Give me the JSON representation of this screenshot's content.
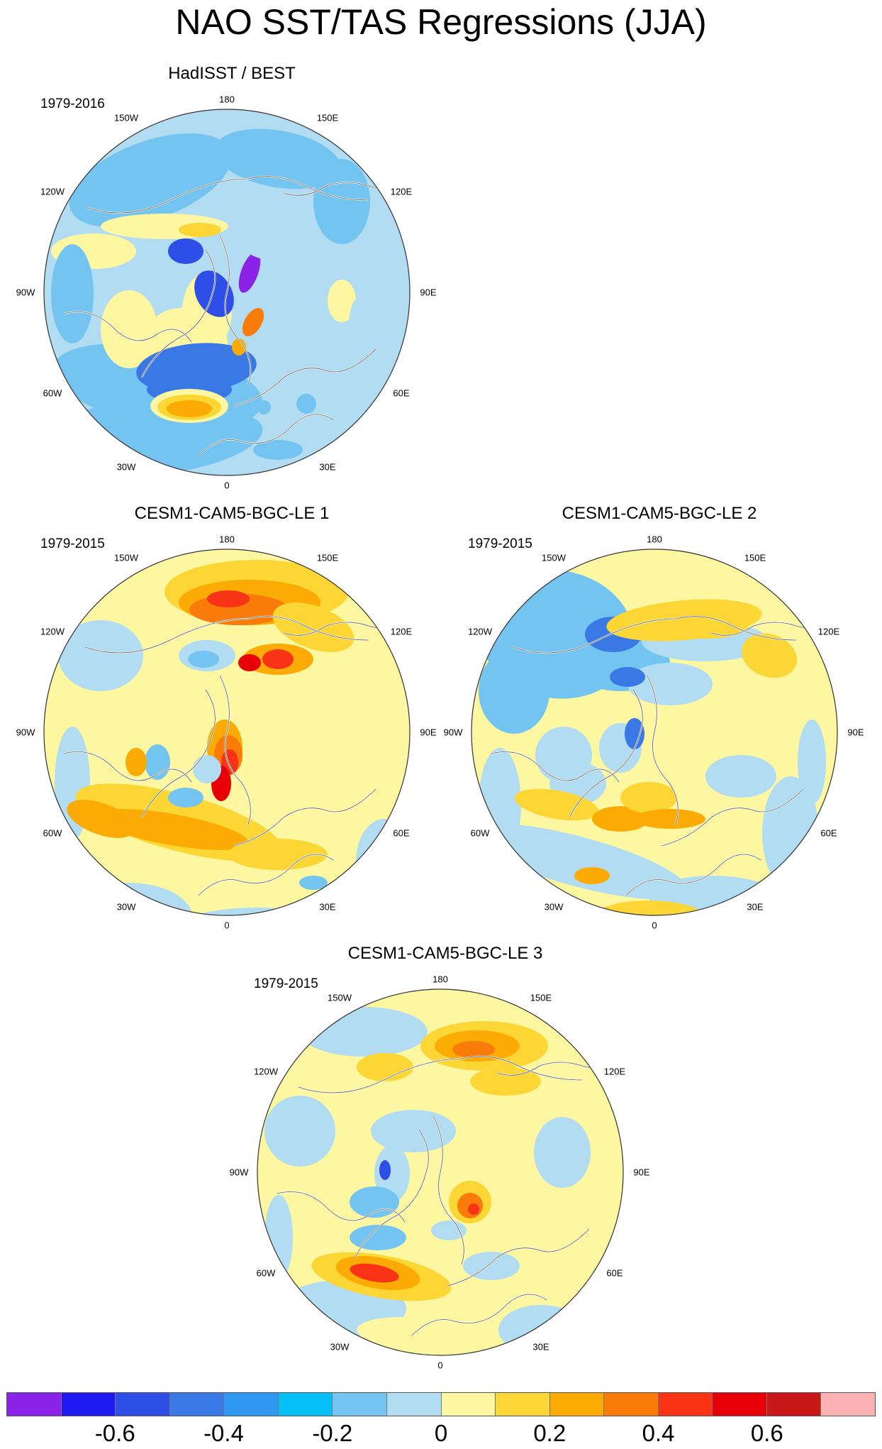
{
  "title": "NAO SST/TAS Regressions (JJA)",
  "longitude_labels": {
    "top": "180",
    "bottom": "0",
    "left": "90W",
    "right": "90E",
    "upper_left": "150W",
    "upper_right": "150E",
    "mid_upper_left": "120W",
    "mid_upper_right": "120E",
    "lower_left": "60W",
    "lower_right": "60E",
    "bottom_left": "30W",
    "bottom_right": "30E"
  },
  "panels": [
    {
      "title": "HadISST / BEST",
      "period": "1979-2016"
    },
    {
      "title": "CESM1-CAM5-BGC-LE 1",
      "period": "1979-2015"
    },
    {
      "title": "CESM1-CAM5-BGC-LE 2",
      "period": "1979-2015"
    },
    {
      "title": "CESM1-CAM5-BGC-LE 3",
      "period": "1979-2015"
    }
  ],
  "colorbar": {
    "colors": [
      "#8a22e8",
      "#1f18f0",
      "#2e4ee8",
      "#3a78e6",
      "#2f98f2",
      "#04c0f6",
      "#73c4f0",
      "#b2dcf2",
      "#fdf7a2",
      "#fcd634",
      "#fbab04",
      "#f97b0a",
      "#f93316",
      "#e80008",
      "#c81717",
      "#fcb2b2"
    ],
    "tick_labels": [
      "-0.6",
      "-0.4",
      "-0.2",
      "0",
      "0.2",
      "0.4",
      "0.6"
    ]
  },
  "map_colors": {
    "neg3": "#2e4ee8",
    "neg2": "#3a78e6",
    "neg1": "#73c4f0",
    "neg0": "#b2dcf2",
    "pos0": "#fdf7a2",
    "pos1": "#fcd634",
    "pos2": "#fbab04",
    "pos3": "#f97b0a",
    "pos4": "#f93316",
    "pos5": "#e80008",
    "deep_neg": "#8a22e8"
  }
}
